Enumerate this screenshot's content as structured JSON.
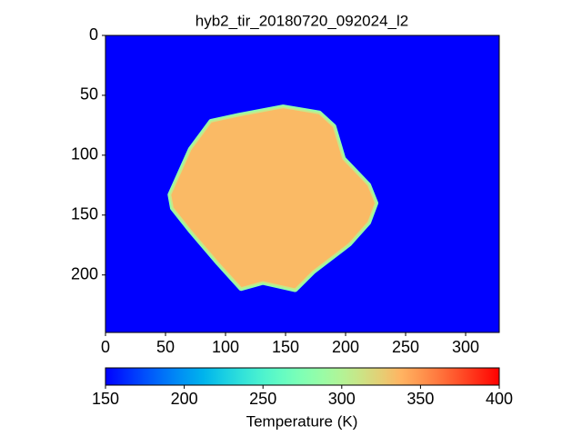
{
  "chart_data": {
    "type": "image",
    "title": "hyb2_tir_20180720_092024_l2",
    "xlim": [
      0,
      328
    ],
    "ylim": [
      248,
      0
    ],
    "xticks": [
      0,
      50,
      100,
      150,
      200,
      250,
      300
    ],
    "yticks": [
      0,
      50,
      100,
      150,
      200
    ],
    "colormap": "rainbow",
    "background": 150,
    "shapes": [
      {
        "x": [
          54,
          71,
          88,
          111,
          148,
          178,
          190,
          198,
          219,
          225,
          219,
          203,
          173,
          158,
          131,
          113,
          94,
          71,
          56
        ],
        "y": [
          133,
          95,
          72,
          67,
          60,
          65,
          76,
          103,
          125,
          140,
          156,
          174,
          197,
          212,
          206,
          211,
          190,
          163,
          144
        ],
        "value": 335,
        "edge_value": 285
      }
    ],
    "colorbar": {
      "label": "Temperature (K)",
      "clim": [
        150,
        400
      ],
      "ticks": [
        150,
        200,
        250,
        300,
        350,
        400
      ]
    }
  }
}
